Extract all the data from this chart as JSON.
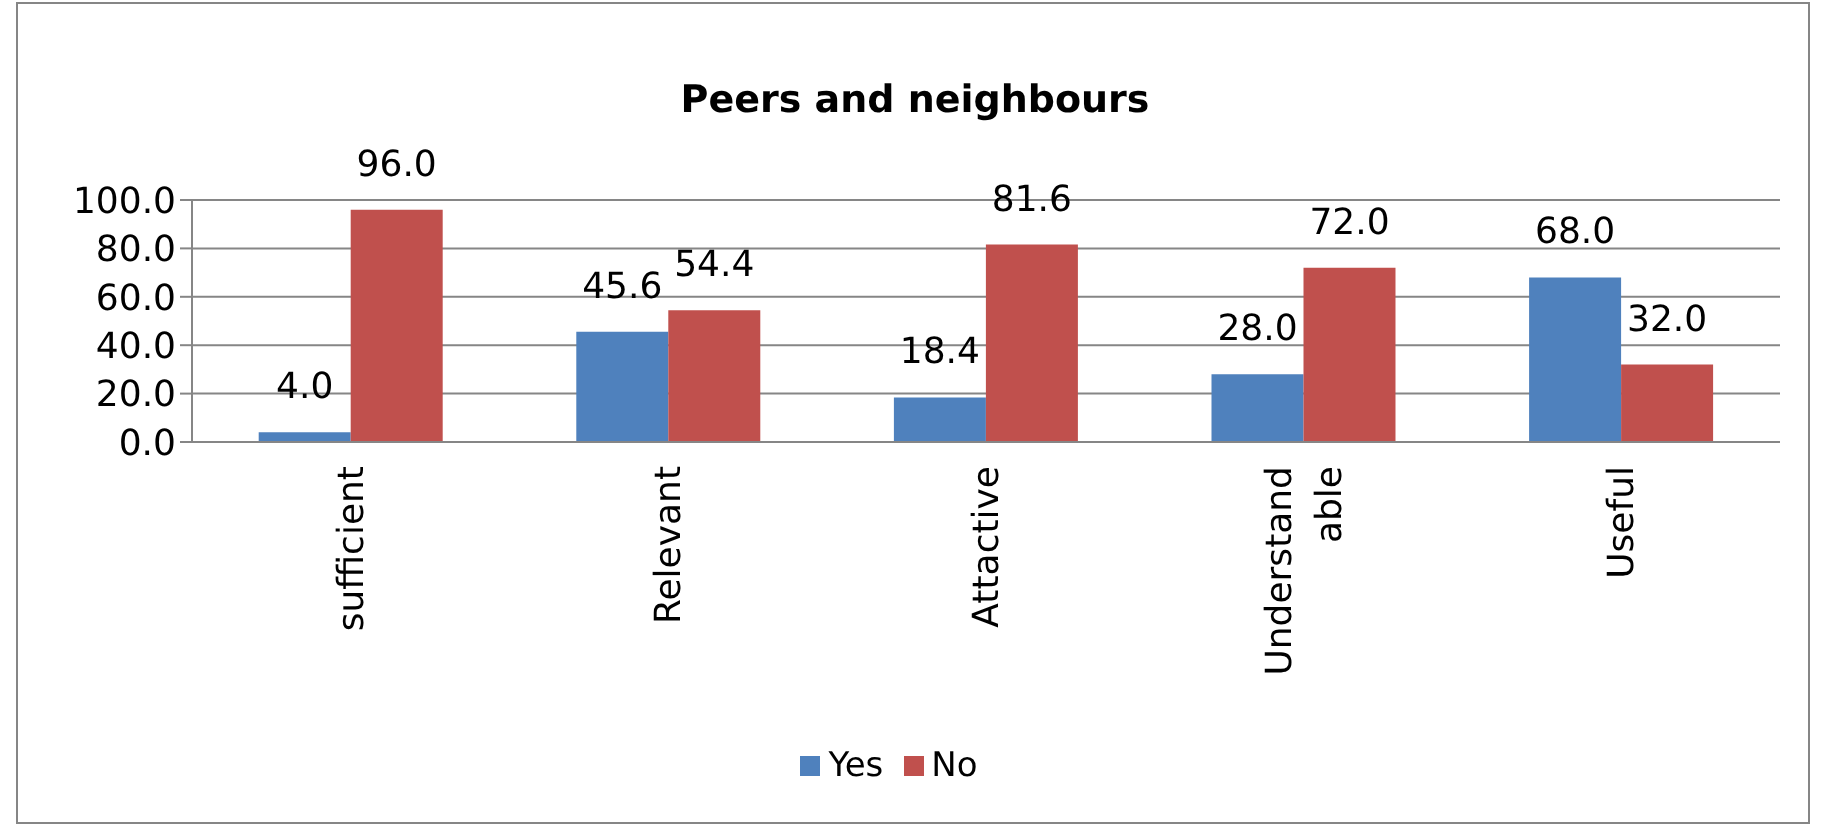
{
  "chart_data": {
    "type": "bar",
    "title": "Peers and neighbours",
    "categories": [
      "sufficient",
      "Relevant",
      "Attactive",
      "Understand able",
      "Useful"
    ],
    "series": [
      {
        "name": "Yes",
        "color": "#4f81bd",
        "values": [
          4.0,
          45.6,
          18.4,
          28.0,
          68.0
        ],
        "value_labels": [
          "4.0",
          "45.6",
          "18.4",
          "28.0",
          "68.0"
        ]
      },
      {
        "name": "No",
        "color": "#c0504d",
        "values": [
          96.0,
          54.4,
          81.6,
          72.0,
          32.0
        ],
        "value_labels": [
          "96.0",
          "54.4",
          "81.6",
          "72.0",
          "32.0"
        ]
      }
    ],
    "ylim": [
      0,
      100
    ],
    "yticks": [
      {
        "value": 0,
        "label": "0.0"
      },
      {
        "value": 20,
        "label": "20.0"
      },
      {
        "value": 40,
        "label": "40.0"
      },
      {
        "value": 60,
        "label": "60.0"
      },
      {
        "value": 80,
        "label": "80.0"
      },
      {
        "value": 100,
        "label": "100.0"
      }
    ],
    "grid": "y",
    "legend": "bottom"
  }
}
